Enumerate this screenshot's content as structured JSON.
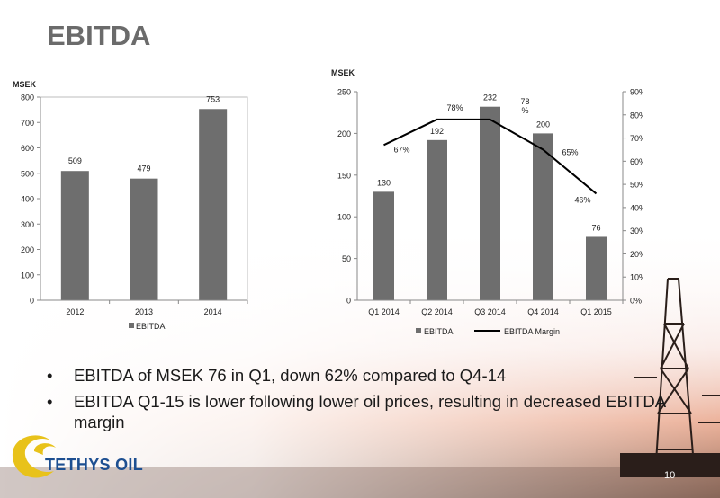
{
  "slide": {
    "title": "EBITDA",
    "bullets": [
      "EBITDA of MSEK 76 in Q1, down 62% compared to Q4-14",
      "EBITDA Q1-15 is lower following lower oil prices, resulting in decreased EBITDA  margin"
    ],
    "logo_text": "TETHYS OIL",
    "page_number": "10"
  },
  "colors": {
    "bar": "#6e6e6e",
    "line": "#000000",
    "title": "#6b6b6b",
    "logo_blue": "#1d4f91",
    "logo_gold": "#e8c21a"
  },
  "chart_data": [
    {
      "type": "bar",
      "ylabel": "MSEK",
      "categories": [
        "2012",
        "2013",
        "2014"
      ],
      "series": [
        {
          "name": "EBITDA",
          "values": [
            509,
            479,
            753
          ]
        }
      ],
      "data_labels": [
        "509",
        "479",
        "753"
      ],
      "ylim": [
        0,
        800
      ],
      "yticks": [
        "0",
        "100",
        "200",
        "300",
        "400",
        "500",
        "600",
        "700",
        "800"
      ],
      "grid": false,
      "legend": "bottom"
    },
    {
      "type": "bar",
      "ylabel": "MSEK",
      "categories": [
        "Q1 2014",
        "Q2 2014",
        "Q3 2014",
        "Q4 2014",
        "Q1 2015"
      ],
      "series": [
        {
          "name": "EBITDA",
          "type": "bar",
          "axis": "left",
          "values": [
            130,
            192,
            232,
            200,
            76
          ]
        },
        {
          "name": "EBITDA Margin",
          "type": "line",
          "axis": "right",
          "values": [
            67,
            78,
            78,
            65,
            46
          ]
        }
      ],
      "bar_labels": [
        "130",
        "192",
        "232",
        "200",
        "76"
      ],
      "margin_labels": [
        "67%",
        "78%",
        "78\n%",
        "65%",
        "46%"
      ],
      "ylim": [
        0,
        250
      ],
      "yticks": [
        "0",
        "50",
        "100",
        "150",
        "200",
        "250"
      ],
      "y2lim": [
        0,
        90
      ],
      "y2ticks": [
        "0%",
        "10%",
        "20%",
        "30%",
        "40%",
        "50%",
        "60%",
        "70%",
        "80%",
        "90%"
      ],
      "grid": false,
      "legend": "bottom"
    }
  ]
}
